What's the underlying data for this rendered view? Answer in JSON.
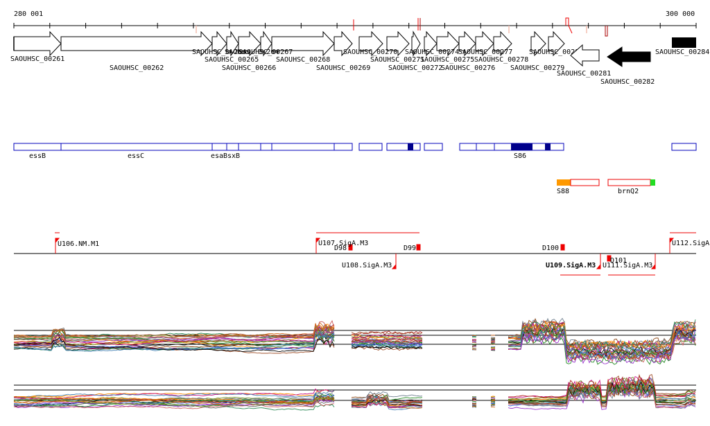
{
  "ruler": {
    "start_label": "280 001",
    "end_label": "300 000"
  },
  "colors": {
    "gene_outline": "#000000",
    "feature_outline": "#0000bb",
    "feature_fill": "#00008b",
    "promoter_red": "#ee0000",
    "s88_orange": "#ff9900",
    "brnq2_green": "#22dd22"
  },
  "genes": [
    {
      "id": "g261",
      "label": "SAOUHSC_00261",
      "strand": "+",
      "filled": false
    },
    {
      "id": "g262",
      "label": "SAOUHSC_00262",
      "strand": "+",
      "filled": false
    },
    {
      "id": "g263",
      "label": "SAOUHSC_00263",
      "strand": "+",
      "filled": false
    },
    {
      "id": "g264",
      "label": "SAOUHSC_00264",
      "strand": "+",
      "filled": false
    },
    {
      "id": "g265",
      "label": "SAOUHSC_00265",
      "strand": "+",
      "filled": false
    },
    {
      "id": "g266",
      "label": "SAOUHSC_00266",
      "strand": "+",
      "filled": false
    },
    {
      "id": "g267",
      "label": "SAOUHSC_00267",
      "strand": "+",
      "filled": false
    },
    {
      "id": "g268",
      "label": "SAOUHSC_00268",
      "strand": "+",
      "filled": false
    },
    {
      "id": "g269",
      "label": "SAOUHSC_00269",
      "strand": "+",
      "filled": false
    },
    {
      "id": "g270",
      "label": "SAOUHSC_00270",
      "strand": "+",
      "filled": false
    },
    {
      "id": "g271",
      "label": "SAOUHSC_00271",
      "strand": "+",
      "filled": false
    },
    {
      "id": "g272",
      "label": "SAOUHSC_00272",
      "strand": "+",
      "filled": false
    },
    {
      "id": "g274",
      "label": "SAOUHSC_00274",
      "strand": "+",
      "filled": false
    },
    {
      "id": "g275",
      "label": "SAOUHSC_00275",
      "strand": "+",
      "filled": false
    },
    {
      "id": "g276",
      "label": "SAOUHSC_00276",
      "strand": "+",
      "filled": false
    },
    {
      "id": "g277",
      "label": "SAOUHSC_00277",
      "strand": "+",
      "filled": false
    },
    {
      "id": "g278",
      "label": "SAOUHSC_00278",
      "strand": "+",
      "filled": false
    },
    {
      "id": "g279",
      "label": "SAOUHSC_00279",
      "strand": "+",
      "filled": false
    },
    {
      "id": "g280",
      "label": "SAOUHSC_00280",
      "strand": "+",
      "filled": false
    },
    {
      "id": "g281",
      "label": "SAOUHSC_00281",
      "strand": "-",
      "filled": false
    },
    {
      "id": "g282",
      "label": "SAOUHSC_00282",
      "strand": "-",
      "filled": true
    },
    {
      "id": "g284",
      "label": "SAOUHSC_00284",
      "strand": "+",
      "filled": true
    }
  ],
  "features": [
    {
      "id": "essB",
      "label": "essB"
    },
    {
      "id": "essC",
      "label": "essC"
    },
    {
      "id": "esaB",
      "label": "esaB"
    },
    {
      "id": "esxB",
      "label": "sxB"
    },
    {
      "id": "S86",
      "label": "S86"
    },
    {
      "id": "S88",
      "label": "S88"
    },
    {
      "id": "brnQ2",
      "label": "brnQ2"
    }
  ],
  "promoters": [
    {
      "id": "U106",
      "label": "U106.NM.M1",
      "bold": false
    },
    {
      "id": "U107",
      "label": "U107.SigA.M3",
      "bold": false
    },
    {
      "id": "D98",
      "label": "D98",
      "bold": false
    },
    {
      "id": "D99",
      "label": "D99",
      "bold": false
    },
    {
      "id": "D100",
      "label": "D100",
      "bold": false
    },
    {
      "id": "D101",
      "label": "D101",
      "bold": false
    },
    {
      "id": "U108",
      "label": "U108.SigA.M3",
      "bold": false
    },
    {
      "id": "U109",
      "label": "U109.SigA.M3",
      "bold": true
    },
    {
      "id": "U111",
      "label": "U111.SigA.M3",
      "bold": false
    },
    {
      "id": "U112",
      "label": "U112.SigA",
      "bold": false
    }
  ],
  "expression_tracks": [
    {
      "id": "track-upper",
      "label": ""
    },
    {
      "id": "track-lower",
      "label": ""
    }
  ]
}
